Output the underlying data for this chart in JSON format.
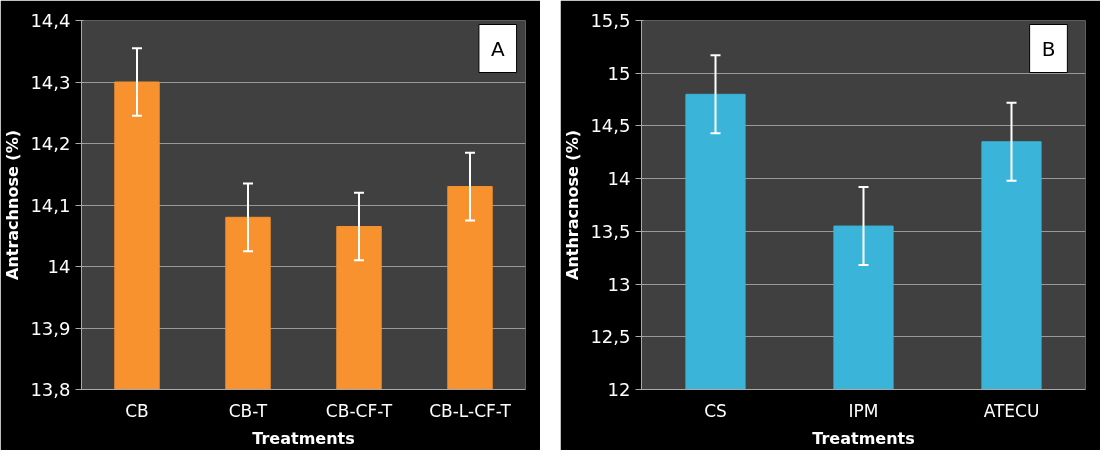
{
  "chart_data": [
    {
      "type": "bar",
      "annotations": [
        "A"
      ],
      "xlabel": "Treatments",
      "ylabel": "Antrachnose (%)",
      "categories": [
        "CB",
        "CB-T",
        "CB-CF-T",
        "CB-L-CF-T"
      ],
      "series": [
        {
          "color": "#f7922e",
          "values": [
            14.3,
            14.08,
            14.065,
            14.13
          ],
          "errors": [
            0.055,
            0.055,
            0.055,
            0.055
          ]
        }
      ],
      "ylim": [
        13.8,
        14.4
      ],
      "yticks": [
        {
          "value": 13.8,
          "label": "13,8"
        },
        {
          "value": 13.9,
          "label": "13,9"
        },
        14,
        {
          "value": 14.1,
          "label": "14,1"
        },
        {
          "value": 14.2,
          "label": "14,2"
        },
        {
          "value": 14.3,
          "label": "14,3"
        },
        {
          "value": 14.4,
          "label": "14,4"
        }
      ],
      "grid": "y"
    },
    {
      "type": "bar",
      "annotations": [
        "B"
      ],
      "xlabel": "Treatments",
      "ylabel": "Anthracnose (%)",
      "categories": [
        "CS",
        "IPM",
        "ATECU"
      ],
      "series": [
        {
          "color": "#3ab4d8",
          "values": [
            14.8,
            13.55,
            14.35
          ],
          "errors": [
            0.37,
            0.37,
            0.37
          ]
        }
      ],
      "ylim": [
        12,
        15.5
      ],
      "yticks": [
        12,
        {
          "value": 12.5,
          "label": "12,5"
        },
        13,
        {
          "value": 13.5,
          "label": "13,5"
        },
        14,
        {
          "value": 14.5,
          "label": "14,5"
        },
        15,
        {
          "value": 15.5,
          "label": "15,5"
        }
      ],
      "grid": "y"
    }
  ]
}
